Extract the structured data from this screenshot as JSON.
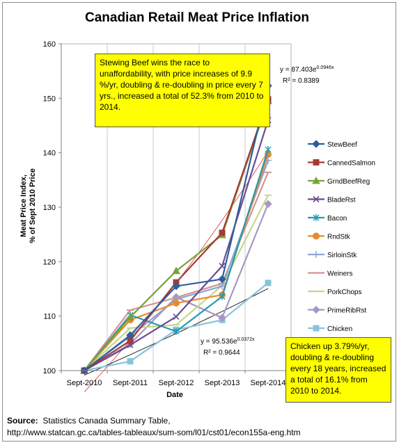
{
  "source_label": "Source:",
  "source_text": "Statistics Canada Summary Table,",
  "source_url": "http://www.statcan.gc.ca/tables-tableaux/sum-som/l01/cst01/econ155a-eng.htm",
  "callouts": {
    "beef": "Stewing Beef wins the race to unaffordability,  with price increases of 9.9 %/yr, doubling & re-doubling in price every 7 yrs., increased a total of 52.3% from 2010 to 2014.",
    "chicken": "Chicken up 3.79%/yr, doubling & re-doubling every 18 years, increased a total of 16.1% from 2010 to 2014."
  },
  "trendline_labels": {
    "beef_eq_base": "y = 87.403e",
    "beef_eq_exp": "0.0946x",
    "beef_r2": "R² = 0.8389",
    "chicken_eq_base": "y = 95.536e",
    "chicken_eq_exp": "0.0372x",
    "chicken_r2": "R² = 0.9644"
  },
  "chart_data": {
    "type": "line",
    "title": "Canadian Retail Meat Price Inflation",
    "xlabel": "Date",
    "ylabel": "Meat Price Index, % of Sept 2010 Price",
    "ylabel_lines": [
      "Meat Price Index,",
      "% of Sept 2010 Price"
    ],
    "categories": [
      "Sept-2010",
      "Sept-2011",
      "Sept-2012",
      "Sept-2013",
      "Sept-2014"
    ],
    "ylim": [
      100,
      160
    ],
    "yticks": [
      100,
      110,
      120,
      130,
      140,
      150,
      160
    ],
    "grid": "vertical",
    "legend_position": "right",
    "series": [
      {
        "name": "StewBeef",
        "color": "#2e5d9c",
        "marker": "diamond",
        "values": [
          100,
          106.5,
          115.5,
          116.8,
          152.3
        ]
      },
      {
        "name": "CannedSalmon",
        "color": "#a63a36",
        "marker": "square",
        "values": [
          100,
          105.5,
          116.2,
          125.3,
          149.8
        ]
      },
      {
        "name": "GrndBeefReg",
        "color": "#79a33b",
        "marker": "triangle",
        "values": [
          100,
          109.8,
          118.3,
          124.9,
          149.5
        ]
      },
      {
        "name": "BladeRst",
        "color": "#6a4c93",
        "marker": "x",
        "values": [
          100,
          104.7,
          109.9,
          119.2,
          146.0
        ]
      },
      {
        "name": "Bacon",
        "color": "#2a98b1",
        "marker": "star",
        "values": [
          100,
          110.2,
          107.2,
          113.6,
          140.6
        ]
      },
      {
        "name": "RndStk",
        "color": "#e88a2e",
        "marker": "circle",
        "values": [
          100,
          109.3,
          112.4,
          113.9,
          139.7
        ]
      },
      {
        "name": "SirloinStk",
        "color": "#8aa6cf",
        "marker": "plus",
        "values": [
          100,
          106.3,
          113.1,
          115.5,
          138.6
        ]
      },
      {
        "name": "Weiners",
        "color": "#d49390",
        "marker": "dash",
        "values": [
          100,
          111.1,
          113.4,
          116.0,
          136.4
        ]
      },
      {
        "name": "PorkChops",
        "color": "#c2d88c",
        "marker": "dash",
        "values": [
          100,
          107.8,
          108.4,
          115.6,
          132.2
        ]
      },
      {
        "name": "PrimeRibRst",
        "color": "#a896c6",
        "marker": "diamond",
        "values": [
          100,
          104.9,
          113.5,
          109.7,
          130.6
        ]
      },
      {
        "name": "Chicken",
        "color": "#87c3db",
        "marker": "square",
        "values": [
          100,
          101.7,
          107.5,
          109.3,
          116.1
        ]
      }
    ],
    "trendlines": [
      {
        "name": "Expon. (StewBeef)",
        "color": "#e05a5a",
        "a": 87.403,
        "b": 0.0946
      },
      {
        "name": "Expon. (Chicken)",
        "color": "#222222",
        "a": 95.536,
        "b": 0.0372
      }
    ]
  }
}
